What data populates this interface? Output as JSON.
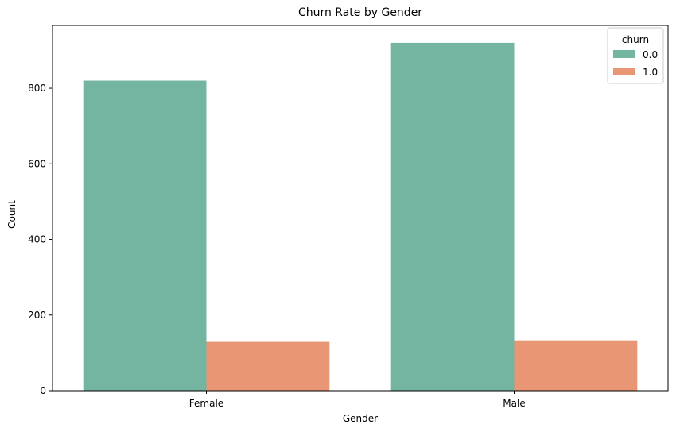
{
  "chart_data": {
    "type": "bar",
    "title": "Churn Rate by Gender",
    "xlabel": "Gender",
    "ylabel": "Count",
    "categories": [
      "Female",
      "Male"
    ],
    "ylim": [
      0,
      966
    ],
    "yticks": [
      0,
      200,
      400,
      600,
      800
    ],
    "ytick_labels": [
      "0",
      "200",
      "400",
      "600",
      "800"
    ],
    "grid": false,
    "legend": {
      "title": "churn",
      "placement": "top-right"
    },
    "series": [
      {
        "name": "0.0",
        "color": "#73b5a0",
        "values": [
          820,
          920
        ]
      },
      {
        "name": "1.0",
        "color": "#e99674",
        "values": [
          129,
          133
        ]
      }
    ]
  }
}
